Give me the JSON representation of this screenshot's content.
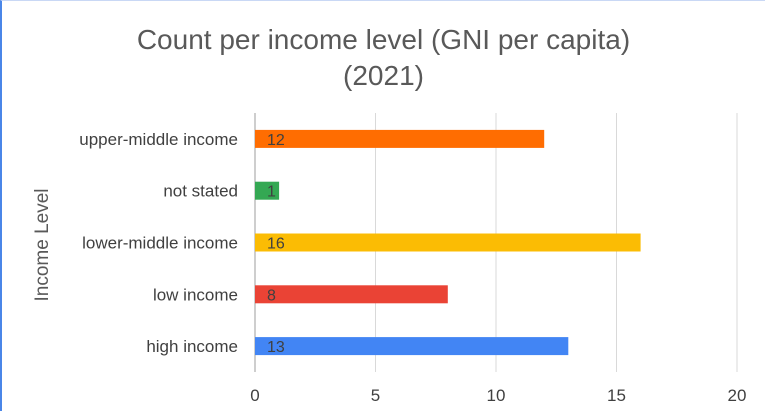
{
  "chart_data": {
    "type": "bar",
    "orientation": "horizontal",
    "title_lines": [
      "Count per income level (GNI per capita)",
      "(2021)"
    ],
    "ylabel": "Income Level",
    "xlabel": "",
    "categories": [
      "upper-middle income",
      "not stated",
      "lower-middle income",
      "low income",
      "high income"
    ],
    "values": [
      12,
      1,
      16,
      8,
      13
    ],
    "colors": [
      "#ff6d01",
      "#34a853",
      "#fbbc04",
      "#ea4335",
      "#4285f4"
    ],
    "xlim": [
      0,
      20
    ],
    "xticks": [
      0,
      5,
      10,
      15,
      20
    ],
    "grid": true,
    "legend": "none",
    "data_labels": true
  }
}
